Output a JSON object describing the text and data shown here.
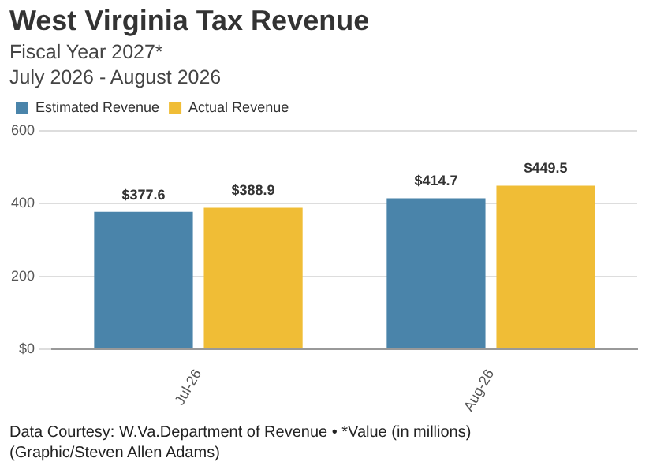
{
  "chart_data": {
    "type": "bar",
    "title": "West Virginia Tax Revenue",
    "subtitle": "Fiscal Year 2027*\nJuly 2026 - August 2026",
    "categories": [
      "Jul-26",
      "Aug-26"
    ],
    "series": [
      {
        "name": "Estimated Revenue",
        "color": "#4a84aa",
        "values": [
          377.6,
          414.7
        ],
        "value_labels": [
          "$377.6",
          "$414.7"
        ]
      },
      {
        "name": "Actual Revenue",
        "color": "#f0bd36",
        "values": [
          388.9,
          449.5
        ],
        "value_labels": [
          "$388.9",
          "$449.5"
        ]
      }
    ],
    "ylim": [
      0,
      600
    ],
    "yticks": [
      {
        "value": 0,
        "label": "$0"
      },
      {
        "value": 200,
        "label": "200"
      },
      {
        "value": 400,
        "label": "400"
      },
      {
        "value": 600,
        "label": "600"
      }
    ],
    "grid": "y",
    "legend": "top left",
    "annotations": [
      "Data Courtesy: W.Va.Department of Revenue • *Value (in millions)",
      "(Graphic/Steven Allen Adams)"
    ]
  }
}
